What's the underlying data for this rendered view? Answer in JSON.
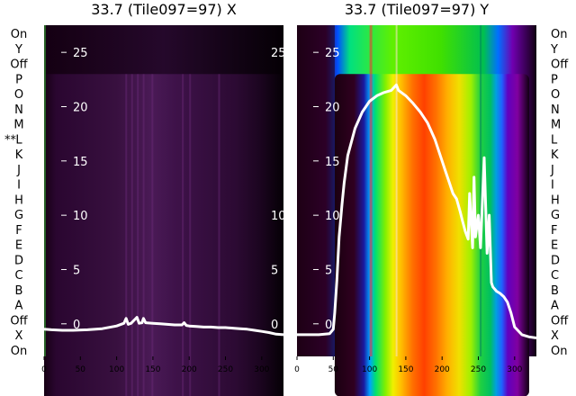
{
  "chart_data": [
    {
      "type": "line",
      "title": "33.7 (Tile097=97) X",
      "xlim": [
        0,
        330
      ],
      "ylim": [
        -3,
        27.5
      ],
      "y_ticks": [
        0,
        5,
        10,
        15,
        20,
        25
      ],
      "x_ticks": [
        0,
        50,
        100,
        150,
        200,
        250,
        300
      ],
      "right_ticks_visible": [
        "25",
        "10",
        "5",
        "0"
      ],
      "background": "heatmap-purple",
      "line_color": "#ffffff",
      "series": [
        {
          "x": [
            0,
            10,
            25,
            40,
            60,
            80,
            100,
            110,
            113,
            116,
            120,
            125,
            128,
            131,
            135,
            137,
            140,
            150,
            160,
            170,
            180,
            190,
            193,
            196,
            200,
            210,
            220,
            230,
            240,
            250,
            260,
            270,
            280,
            290,
            300,
            310,
            320,
            330
          ],
          "y": [
            -0.5,
            -0.55,
            -0.6,
            -0.6,
            -0.55,
            -0.45,
            -0.2,
            0.05,
            0.5,
            -0.05,
            0.05,
            0.4,
            0.6,
            0.05,
            0.1,
            0.5,
            0.1,
            0.05,
            0.0,
            -0.05,
            -0.1,
            -0.1,
            0.1,
            -0.15,
            -0.2,
            -0.25,
            -0.3,
            -0.3,
            -0.35,
            -0.35,
            -0.4,
            -0.45,
            -0.5,
            -0.6,
            -0.7,
            -0.8,
            -0.95,
            -1.0
          ]
        }
      ]
    },
    {
      "type": "line",
      "title": "33.7 (Tile097=97) Y",
      "xlim": [
        0,
        330
      ],
      "ylim": [
        -3,
        27.5
      ],
      "y_ticks": [
        0,
        5,
        10,
        15,
        20,
        25
      ],
      "x_ticks": [
        0,
        50,
        100,
        150,
        200,
        250,
        300
      ],
      "background": "heatmap-rainbow",
      "line_color": "#ffffff",
      "series": [
        {
          "x": [
            0,
            30,
            45,
            50,
            52,
            55,
            58,
            62,
            65,
            70,
            80,
            90,
            100,
            110,
            120,
            130,
            137,
            140,
            150,
            160,
            170,
            180,
            190,
            200,
            205,
            210,
            215,
            220,
            225,
            228,
            232,
            236,
            238,
            242,
            244,
            246,
            250,
            253,
            258,
            262,
            265,
            268,
            270,
            275,
            280,
            285,
            290,
            295,
            300,
            310,
            320,
            330
          ],
          "y": [
            -1.0,
            -1.0,
            -0.9,
            -0.5,
            1.0,
            4.0,
            8.0,
            11.0,
            13.0,
            15.5,
            18.0,
            19.5,
            20.5,
            21.0,
            21.3,
            21.5,
            22.0,
            21.5,
            21.0,
            20.3,
            19.5,
            18.5,
            17.0,
            15.0,
            14.0,
            13.0,
            12.0,
            11.5,
            10.3,
            9.5,
            8.5,
            7.8,
            12.0,
            7.0,
            13.5,
            8.0,
            10.0,
            7.0,
            15.3,
            6.5,
            10.0,
            3.8,
            3.4,
            3.0,
            2.8,
            2.5,
            2.0,
            1.0,
            -0.3,
            -1.0,
            -1.2,
            -1.3
          ]
        }
      ]
    }
  ],
  "left_labels": [
    "On",
    "Y",
    "Off",
    "P",
    "O",
    "N",
    "M",
    "L",
    "K",
    "J",
    "I",
    "H",
    "G",
    "F",
    "E",
    "D",
    "C",
    "B",
    "A",
    "Off",
    "X",
    "On"
  ],
  "left_marker": "**",
  "right_labels": [
    "On",
    "Y",
    "Off",
    "P",
    "O",
    "N",
    "M",
    "L",
    "K",
    "J",
    "I",
    "H",
    "G",
    "F",
    "E",
    "D",
    "C",
    "B",
    "A",
    "Off",
    "X",
    "On"
  ]
}
